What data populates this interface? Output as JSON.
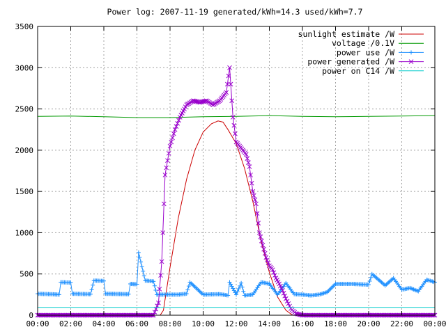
{
  "chart_data": {
    "type": "line",
    "title": "Power log: 2007-11-19 generated/kWh=14.3 used/kWh=7.7",
    "xlabel": "",
    "ylabel": "",
    "grid": true,
    "legend_position": "top-right",
    "x_range_hours": [
      0,
      24
    ],
    "ylim": [
      0,
      3500
    ],
    "xticks": [
      "00:00",
      "02:00",
      "04:00",
      "06:00",
      "08:00",
      "10:00",
      "12:00",
      "14:00",
      "16:00",
      "18:00",
      "20:00",
      "22:00",
      "00:00"
    ],
    "yticks": [
      0,
      500,
      1000,
      1500,
      2000,
      2500,
      3000,
      3500
    ],
    "series": [
      {
        "name": "sunlight estimate /W",
        "color": "#cc0000",
        "marker": "none",
        "x_hours": [
          0,
          7.4,
          7.6,
          8.0,
          8.5,
          9.0,
          9.5,
          10.0,
          10.5,
          10.9,
          11.2,
          11.5,
          12.0,
          12.5,
          13.0,
          13.5,
          14.0,
          14.5,
          15.0,
          15.4,
          15.8,
          24
        ],
        "values": [
          0,
          0,
          60,
          580,
          1180,
          1650,
          2000,
          2220,
          2320,
          2355,
          2340,
          2250,
          2080,
          1780,
          1380,
          900,
          520,
          220,
          60,
          0,
          0,
          0
        ]
      },
      {
        "name": "voltage /0.1V",
        "color": "#009900",
        "marker": "none",
        "x_hours": [
          0,
          2,
          4,
          6,
          8,
          10,
          12,
          14,
          16,
          18,
          20,
          22,
          24
        ],
        "values": [
          2410,
          2415,
          2405,
          2395,
          2395,
          2405,
          2410,
          2420,
          2410,
          2405,
          2410,
          2415,
          2420
        ]
      },
      {
        "name": "power use /W",
        "color": "#1e90ff",
        "marker": "plus",
        "x_hours": [
          0,
          0.8,
          1.3,
          1.4,
          2.0,
          2.1,
          3.2,
          3.4,
          4.0,
          4.1,
          5.5,
          5.6,
          6.0,
          6.1,
          6.5,
          7.0,
          7.2,
          8.5,
          9.0,
          9.2,
          10.0,
          11.0,
          11.5,
          11.6,
          12.0,
          12.3,
          12.5,
          13.0,
          13.5,
          14.0,
          14.5,
          15.0,
          15.5,
          16.0,
          16.5,
          17.0,
          17.5,
          18.0,
          19.0,
          20.0,
          20.2,
          21.0,
          21.5,
          22.0,
          22.5,
          23.0,
          23.5,
          24
        ],
        "values": [
          260,
          255,
          250,
          400,
          395,
          260,
          255,
          420,
          415,
          260,
          255,
          380,
          375,
          760,
          420,
          410,
          250,
          250,
          260,
          400,
          250,
          255,
          240,
          400,
          250,
          390,
          240,
          250,
          400,
          380,
          250,
          390,
          255,
          250,
          240,
          250,
          280,
          380,
          380,
          370,
          500,
          360,
          450,
          310,
          330,
          290,
          430,
          400
        ]
      },
      {
        "name": "power generated /W",
        "color": "#9900cc",
        "marker": "x",
        "x_hours": [
          0,
          7.0,
          7.3,
          7.5,
          7.7,
          8.0,
          8.3,
          8.6,
          9.0,
          9.4,
          9.8,
          10.2,
          10.6,
          11.0,
          11.4,
          11.6,
          11.8,
          12.0,
          12.2,
          12.4,
          12.6,
          12.8,
          13.0,
          13.2,
          13.4,
          13.6,
          13.8,
          14.0,
          14.2,
          14.4,
          14.6,
          14.8,
          15.0,
          15.3,
          15.6,
          16.0,
          24
        ],
        "values": [
          0,
          0,
          150,
          650,
          1700,
          2050,
          2250,
          2400,
          2550,
          2600,
          2580,
          2600,
          2550,
          2600,
          2700,
          3000,
          2400,
          2100,
          2050,
          2000,
          1950,
          1800,
          1500,
          1350,
          1000,
          850,
          700,
          600,
          550,
          450,
          380,
          300,
          200,
          80,
          20,
          0,
          0
        ]
      },
      {
        "name": "power on C14 /W",
        "color": "#00cccc",
        "marker": "none",
        "x_hours": [
          0,
          24
        ],
        "values": [
          95,
          95
        ]
      }
    ]
  }
}
